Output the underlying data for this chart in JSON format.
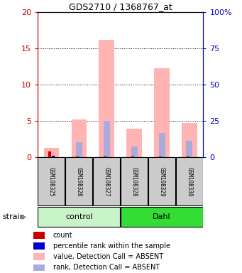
{
  "title": "GDS2710 / 1368767_at",
  "samples": [
    "GSM108325",
    "GSM108326",
    "GSM108327",
    "GSM108328",
    "GSM108329",
    "GSM108330"
  ],
  "groups": [
    {
      "label": "control",
      "indices": [
        0,
        1,
        2
      ],
      "color": "#c8f5c8"
    },
    {
      "label": "Dahl",
      "indices": [
        3,
        4,
        5
      ],
      "color": "#33dd33"
    }
  ],
  "pink_values": [
    1.3,
    5.2,
    16.2,
    3.9,
    12.3,
    4.7
  ],
  "blue_values": [
    0.0,
    2.0,
    5.0,
    1.5,
    3.3,
    2.2
  ],
  "red_values": [
    0.75,
    0.12,
    0.12,
    0.12,
    0.12,
    0.12
  ],
  "tiny_blue_values": [
    0.18,
    0.0,
    0.0,
    0.0,
    0.0,
    0.0
  ],
  "ylim_left": [
    0,
    20
  ],
  "ylim_right": [
    0,
    100
  ],
  "yticks_left": [
    0,
    5,
    10,
    15,
    20
  ],
  "yticks_right": [
    0,
    25,
    50,
    75,
    100
  ],
  "ytick_labels_right": [
    "0",
    "25",
    "50",
    "75",
    "100%"
  ],
  "bar_width": 0.55,
  "pink_color": "#ffb3b3",
  "blue_color": "#aaaadd",
  "red_color": "#cc0000",
  "dark_blue_color": "#0000cc",
  "axis_color_left": "#cc0000",
  "axis_color_right": "#0000cc",
  "legend_items": [
    {
      "color": "#cc0000",
      "label": "count"
    },
    {
      "color": "#0000cc",
      "label": "percentile rank within the sample"
    },
    {
      "color": "#ffb3b3",
      "label": "value, Detection Call = ABSENT"
    },
    {
      "color": "#aaaadd",
      "label": "rank, Detection Call = ABSENT"
    }
  ],
  "strain_label": "strain",
  "fig_width": 3.41,
  "fig_height": 3.84
}
